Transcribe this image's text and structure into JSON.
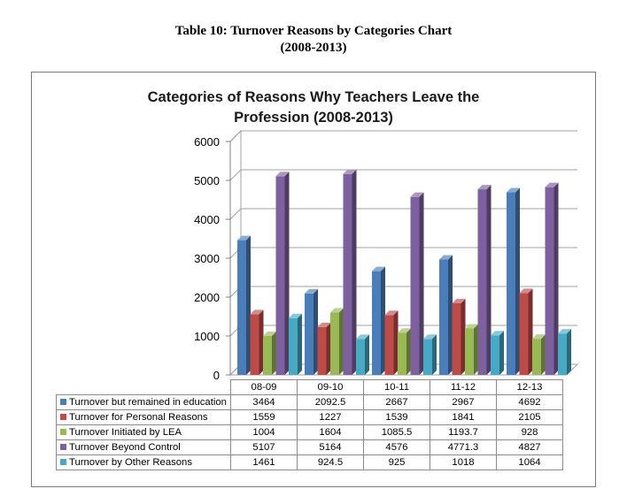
{
  "document_title": {
    "line1": "Table 10:  Turnover Reasons by Categories Chart",
    "line2": "(2008-2013)"
  },
  "chart_data": {
    "type": "bar",
    "title_line1": "Categories of Reasons Why Teachers Leave the",
    "title_line2": "Profession (2008-2013)",
    "categories": [
      "08-09",
      "09-10",
      "10-11",
      "11-12",
      "12-13"
    ],
    "series": [
      {
        "name": "Turnover but remained in education",
        "values": [
          3464,
          2092.5,
          2667,
          2967,
          4692
        ],
        "display": [
          "3464",
          "2092.5",
          "2667",
          "2967",
          "4692"
        ],
        "color": "#4a7ebb"
      },
      {
        "name": "Turnover for Personal Reasons",
        "values": [
          1559,
          1227,
          1539,
          1841,
          2105
        ],
        "display": [
          "1559",
          "1227",
          "1539",
          "1841",
          "2105"
        ],
        "color": "#be4b48"
      },
      {
        "name": "Turnover Initiated by LEA",
        "values": [
          1004,
          1604,
          1085.5,
          1193.7,
          928
        ],
        "display": [
          "1004",
          "1604",
          "1085.5",
          "1193.7",
          "928"
        ],
        "color": "#98b954"
      },
      {
        "name": "Turnover Beyond Control",
        "values": [
          5107,
          5164,
          4576,
          4771.3,
          4827
        ],
        "display": [
          "5107",
          "5164",
          "4576",
          "4771.3",
          "4827"
        ],
        "color": "#7d60a0"
      },
      {
        "name": "Turnover by Other Reasons",
        "values": [
          1461,
          924.5,
          925,
          1018,
          1064
        ],
        "display": [
          "1461",
          "924.5",
          "925",
          "1018",
          "1064"
        ],
        "color": "#46aac5"
      }
    ],
    "y_ticks": [
      "0",
      "1000",
      "2000",
      "3000",
      "4000",
      "5000",
      "6000"
    ],
    "ylim": [
      0,
      6000
    ],
    "grid": true,
    "legend": "data-table-below",
    "style": "3d-clustered-column"
  }
}
